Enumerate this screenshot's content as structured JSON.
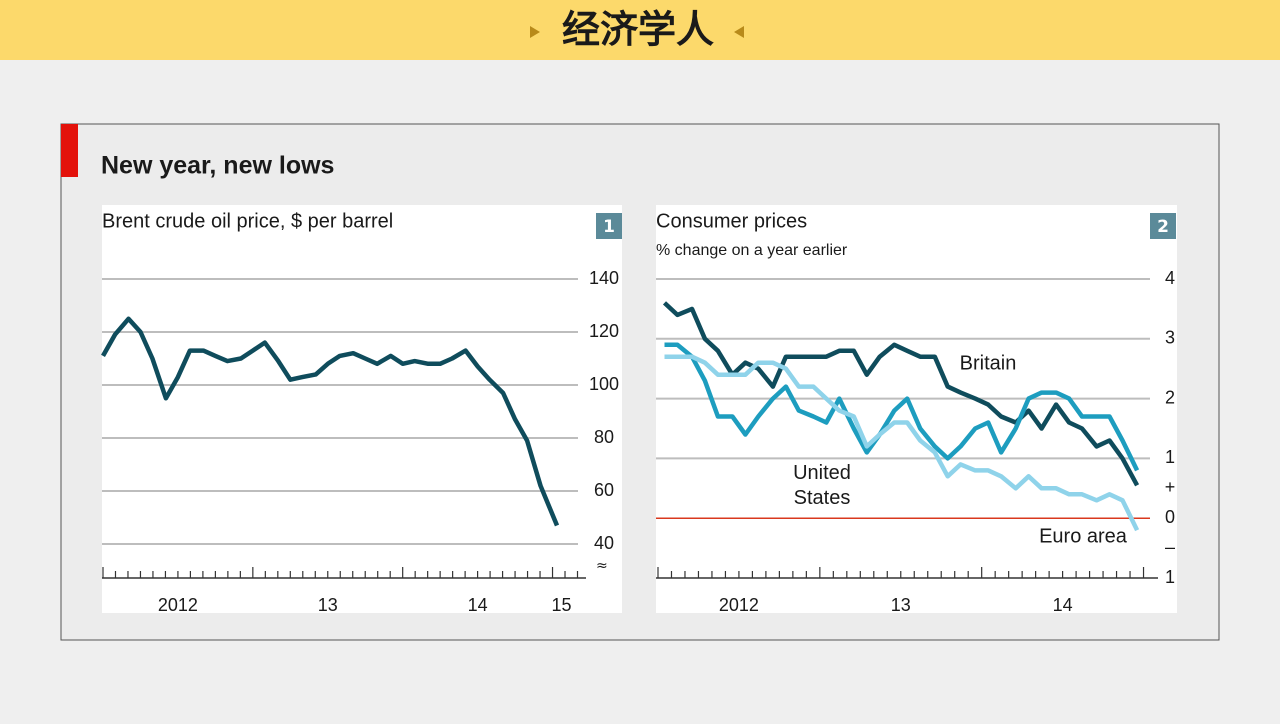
{
  "header": {
    "title": "经济学人"
  },
  "panel": {
    "title": "New year, new lows"
  },
  "chart_data": [
    {
      "type": "line",
      "title": "Brent crude oil price, $ per barrel",
      "number": "1",
      "x": [
        2012.0,
        2012.08,
        2012.17,
        2012.25,
        2012.33,
        2012.42,
        2012.5,
        2012.58,
        2012.67,
        2012.75,
        2012.83,
        2012.92,
        2013.0,
        2013.08,
        2013.17,
        2013.25,
        2013.33,
        2013.42,
        2013.5,
        2013.58,
        2013.67,
        2013.75,
        2013.83,
        2013.92,
        2014.0,
        2014.08,
        2014.17,
        2014.25,
        2014.33,
        2014.42,
        2014.5,
        2014.58,
        2014.67,
        2014.75,
        2014.83,
        2014.92,
        2015.03
      ],
      "values": [
        111,
        119,
        125,
        120,
        110,
        95,
        103,
        113,
        113,
        111,
        109,
        110,
        113,
        116,
        109,
        102,
        103,
        104,
        108,
        111,
        112,
        110,
        108,
        111,
        108,
        109,
        108,
        108,
        110,
        113,
        107,
        102,
        97,
        87,
        79,
        62,
        47
      ],
      "color": "#0f4c5c",
      "xlim": [
        2012,
        2015.17
      ],
      "ylim": [
        40,
        140
      ],
      "xticks": [
        {
          "value": 2012.5,
          "label": "2012"
        },
        {
          "value": 2013.5,
          "label": "13"
        },
        {
          "value": 2014.5,
          "label": "14"
        },
        {
          "value": 2015.06,
          "label": "15"
        }
      ],
      "yticks": [
        40,
        60,
        80,
        100,
        120,
        140
      ],
      "grid": true
    },
    {
      "type": "line",
      "title": "Consumer prices",
      "subtitle": "% change on a year earlier",
      "number": "2",
      "x": [
        2012.04,
        2012.12,
        2012.21,
        2012.29,
        2012.37,
        2012.46,
        2012.54,
        2012.62,
        2012.71,
        2012.79,
        2012.87,
        2012.96,
        2013.04,
        2013.12,
        2013.21,
        2013.29,
        2013.37,
        2013.46,
        2013.54,
        2013.62,
        2013.71,
        2013.79,
        2013.87,
        2013.96,
        2014.04,
        2014.12,
        2014.21,
        2014.29,
        2014.37,
        2014.46,
        2014.54,
        2014.62,
        2014.71,
        2014.79,
        2014.87,
        2014.96
      ],
      "series": [
        {
          "name": "Britain",
          "color": "#0f4c5c",
          "values": [
            3.6,
            3.4,
            3.5,
            3.0,
            2.8,
            2.4,
            2.6,
            2.5,
            2.2,
            2.7,
            2.7,
            2.7,
            2.7,
            2.8,
            2.8,
            2.4,
            2.7,
            2.9,
            2.8,
            2.7,
            2.7,
            2.2,
            2.1,
            2.0,
            1.9,
            1.7,
            1.6,
            1.8,
            1.5,
            1.9,
            1.6,
            1.5,
            1.2,
            1.3,
            1.0,
            0.55
          ]
        },
        {
          "name": "United States",
          "color": "#1d9dbf",
          "values": [
            2.9,
            2.9,
            2.7,
            2.3,
            1.7,
            1.7,
            1.4,
            1.7,
            2.0,
            2.2,
            1.8,
            1.7,
            1.6,
            2.0,
            1.5,
            1.1,
            1.4,
            1.8,
            2.0,
            1.5,
            1.2,
            1.0,
            1.2,
            1.5,
            1.6,
            1.1,
            1.5,
            2.0,
            2.1,
            2.1,
            2.0,
            1.7,
            1.7,
            1.7,
            1.3,
            0.8
          ]
        },
        {
          "name": "Euro area",
          "color": "#8fd3ea",
          "values": [
            2.7,
            2.7,
            2.7,
            2.6,
            2.4,
            2.4,
            2.4,
            2.6,
            2.6,
            2.5,
            2.2,
            2.2,
            2.0,
            1.8,
            1.7,
            1.2,
            1.4,
            1.6,
            1.6,
            1.3,
            1.1,
            0.7,
            0.9,
            0.8,
            0.8,
            0.7,
            0.5,
            0.7,
            0.5,
            0.5,
            0.4,
            0.4,
            0.3,
            0.4,
            0.3,
            -0.2
          ]
        }
      ],
      "xlim": [
        2012,
        2015.04
      ],
      "ylim": [
        -1,
        4
      ],
      "xticks": [
        {
          "value": 2012.5,
          "label": "2012"
        },
        {
          "value": 2013.5,
          "label": "13"
        },
        {
          "value": 2014.5,
          "label": "14"
        }
      ],
      "yticks": [
        4,
        3,
        2,
        1,
        {
          "value": 0.5,
          "label": "+"
        },
        0,
        {
          "value": -0.5,
          "label": "–"
        },
        {
          "value": -1,
          "label": "1"
        }
      ],
      "grid": true,
      "zero_line_color": "#d9381e"
    }
  ]
}
